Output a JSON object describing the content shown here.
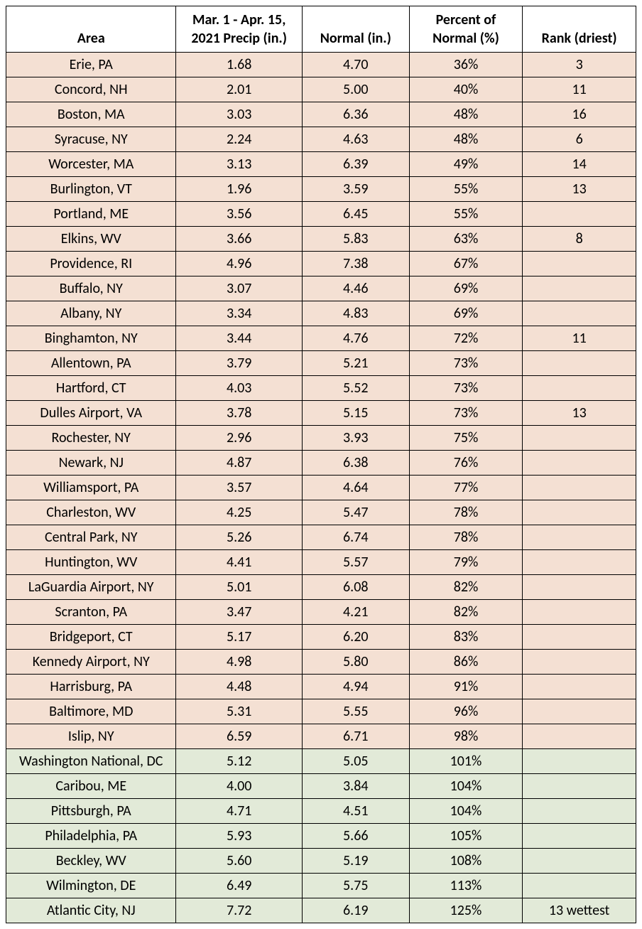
{
  "table": {
    "type": "table",
    "columns": [
      "Area",
      "Mar. 1 - Apr. 15, 2021 Precip (in.)",
      "Normal (in.)",
      "Percent of Normal (%)",
      "Rank (driest)"
    ],
    "column_widths_pct": [
      27,
      20,
      17,
      18,
      18
    ],
    "row_colors": {
      "below_normal": "#f4e0d3",
      "above_normal": "#e2ead8"
    },
    "border_color": "#000000",
    "header_background": "#ffffff",
    "font_family": "Calibri",
    "header_fontsize": 20,
    "cell_fontsize": 20,
    "rows": [
      {
        "area": "Erie, PA",
        "precip": "1.68",
        "normal": "4.70",
        "pct": "36%",
        "rank": "3",
        "cls": "below"
      },
      {
        "area": "Concord, NH",
        "precip": "2.01",
        "normal": "5.00",
        "pct": "40%",
        "rank": "11",
        "cls": "below"
      },
      {
        "area": "Boston, MA",
        "precip": "3.03",
        "normal": "6.36",
        "pct": "48%",
        "rank": "16",
        "cls": "below"
      },
      {
        "area": "Syracuse, NY",
        "precip": "2.24",
        "normal": "4.63",
        "pct": "48%",
        "rank": "6",
        "cls": "below"
      },
      {
        "area": "Worcester, MA",
        "precip": "3.13",
        "normal": "6.39",
        "pct": "49%",
        "rank": "14",
        "cls": "below"
      },
      {
        "area": "Burlington, VT",
        "precip": "1.96",
        "normal": "3.59",
        "pct": "55%",
        "rank": "13",
        "cls": "below"
      },
      {
        "area": "Portland, ME",
        "precip": "3.56",
        "normal": "6.45",
        "pct": "55%",
        "rank": "",
        "cls": "below"
      },
      {
        "area": "Elkins, WV",
        "precip": "3.66",
        "normal": "5.83",
        "pct": "63%",
        "rank": "8",
        "cls": "below"
      },
      {
        "area": "Providence, RI",
        "precip": "4.96",
        "normal": "7.38",
        "pct": "67%",
        "rank": "",
        "cls": "below"
      },
      {
        "area": "Buffalo, NY",
        "precip": "3.07",
        "normal": "4.46",
        "pct": "69%",
        "rank": "",
        "cls": "below"
      },
      {
        "area": "Albany, NY",
        "precip": "3.34",
        "normal": "4.83",
        "pct": "69%",
        "rank": "",
        "cls": "below"
      },
      {
        "area": "Binghamton, NY",
        "precip": "3.44",
        "normal": "4.76",
        "pct": "72%",
        "rank": "11",
        "cls": "below"
      },
      {
        "area": "Allentown, PA",
        "precip": "3.79",
        "normal": "5.21",
        "pct": "73%",
        "rank": "",
        "cls": "below"
      },
      {
        "area": "Hartford, CT",
        "precip": "4.03",
        "normal": "5.52",
        "pct": "73%",
        "rank": "",
        "cls": "below"
      },
      {
        "area": "Dulles Airport, VA",
        "precip": "3.78",
        "normal": "5.15",
        "pct": "73%",
        "rank": "13",
        "cls": "below"
      },
      {
        "area": "Rochester, NY",
        "precip": "2.96",
        "normal": "3.93",
        "pct": "75%",
        "rank": "",
        "cls": "below"
      },
      {
        "area": "Newark, NJ",
        "precip": "4.87",
        "normal": "6.38",
        "pct": "76%",
        "rank": "",
        "cls": "below"
      },
      {
        "area": "Williamsport, PA",
        "precip": "3.57",
        "normal": "4.64",
        "pct": "77%",
        "rank": "",
        "cls": "below"
      },
      {
        "area": "Charleston, WV",
        "precip": "4.25",
        "normal": "5.47",
        "pct": "78%",
        "rank": "",
        "cls": "below"
      },
      {
        "area": "Central Park, NY",
        "precip": "5.26",
        "normal": "6.74",
        "pct": "78%",
        "rank": "",
        "cls": "below"
      },
      {
        "area": "Huntington, WV",
        "precip": "4.41",
        "normal": "5.57",
        "pct": "79%",
        "rank": "",
        "cls": "below"
      },
      {
        "area": "LaGuardia Airport, NY",
        "precip": "5.01",
        "normal": "6.08",
        "pct": "82%",
        "rank": "",
        "cls": "below"
      },
      {
        "area": "Scranton, PA",
        "precip": "3.47",
        "normal": "4.21",
        "pct": "82%",
        "rank": "",
        "cls": "below"
      },
      {
        "area": "Bridgeport, CT",
        "precip": "5.17",
        "normal": "6.20",
        "pct": "83%",
        "rank": "",
        "cls": "below"
      },
      {
        "area": "Kennedy Airport, NY",
        "precip": "4.98",
        "normal": "5.80",
        "pct": "86%",
        "rank": "",
        "cls": "below"
      },
      {
        "area": "Harrisburg, PA",
        "precip": "4.48",
        "normal": "4.94",
        "pct": "91%",
        "rank": "",
        "cls": "below"
      },
      {
        "area": "Baltimore, MD",
        "precip": "5.31",
        "normal": "5.55",
        "pct": "96%",
        "rank": "",
        "cls": "below"
      },
      {
        "area": "Islip, NY",
        "precip": "6.59",
        "normal": "6.71",
        "pct": "98%",
        "rank": "",
        "cls": "below"
      },
      {
        "area": "Washington National, DC",
        "precip": "5.12",
        "normal": "5.05",
        "pct": "101%",
        "rank": "",
        "cls": "above"
      },
      {
        "area": "Caribou, ME",
        "precip": "4.00",
        "normal": "3.84",
        "pct": "104%",
        "rank": "",
        "cls": "above"
      },
      {
        "area": "Pittsburgh, PA",
        "precip": "4.71",
        "normal": "4.51",
        "pct": "104%",
        "rank": "",
        "cls": "above"
      },
      {
        "area": "Philadelphia, PA",
        "precip": "5.93",
        "normal": "5.66",
        "pct": "105%",
        "rank": "",
        "cls": "above"
      },
      {
        "area": "Beckley, WV",
        "precip": "5.60",
        "normal": "5.19",
        "pct": "108%",
        "rank": "",
        "cls": "above"
      },
      {
        "area": "Wilmington, DE",
        "precip": "6.49",
        "normal": "5.75",
        "pct": "113%",
        "rank": "",
        "cls": "above"
      },
      {
        "area": "Atlantic City, NJ",
        "precip": "7.72",
        "normal": "6.19",
        "pct": "125%",
        "rank": "13 wettest",
        "cls": "above"
      }
    ]
  }
}
